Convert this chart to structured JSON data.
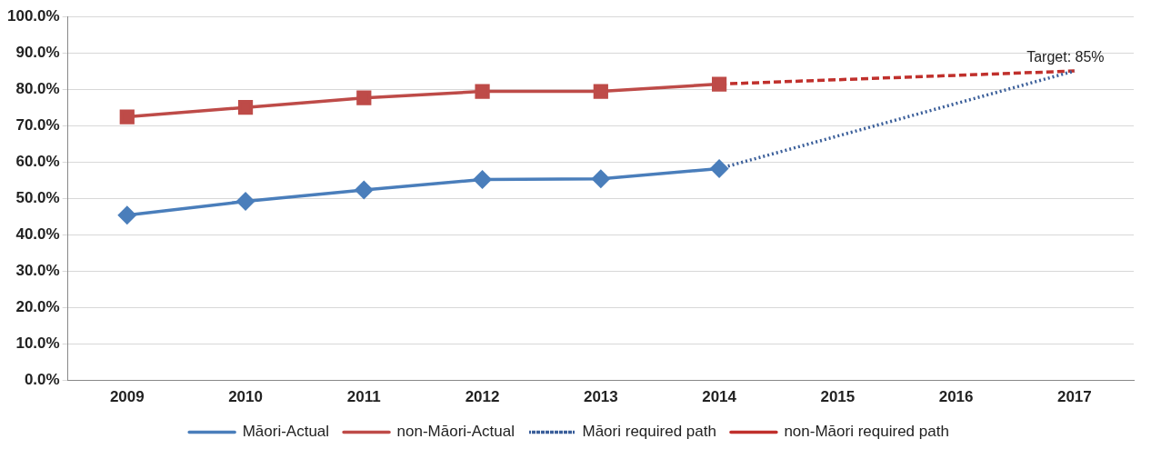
{
  "chart_data": {
    "type": "line",
    "categories": [
      "2009",
      "2010",
      "2011",
      "2012",
      "2013",
      "2014",
      "2015",
      "2016",
      "2017"
    ],
    "series": [
      {
        "name": "Māori-Actual",
        "color": "#4a7ebb",
        "marker": "diamond",
        "line_style": "solid",
        "values": [
          45.4,
          49.2,
          52.3,
          55.2,
          55.4,
          58.2,
          null,
          null,
          null
        ]
      },
      {
        "name": "non-Māori-Actual",
        "color": "#be4b48",
        "marker": "square",
        "line_style": "solid",
        "values": [
          72.4,
          75,
          77.6,
          79.4,
          79.4,
          81.4,
          null,
          null,
          null
        ]
      },
      {
        "name": "Māori required path",
        "color": "#3b5f9a",
        "marker": "none",
        "line_style": "dotted",
        "values": [
          null,
          null,
          null,
          null,
          null,
          58.2,
          null,
          null,
          85
        ]
      },
      {
        "name": "non-Māori required path",
        "color": "#c0302c",
        "marker": "none",
        "line_style": "dashed",
        "values": [
          null,
          null,
          null,
          null,
          null,
          81.4,
          null,
          null,
          85
        ]
      }
    ],
    "ylim": [
      0,
      100
    ],
    "yticks": [
      {
        "value": 0,
        "label": "0.0%"
      },
      {
        "value": 10,
        "label": "10.0%"
      },
      {
        "value": 20,
        "label": "20.0%"
      },
      {
        "value": 30,
        "label": "30.0%"
      },
      {
        "value": 40,
        "label": "40.0%"
      },
      {
        "value": 50,
        "label": "50.0%"
      },
      {
        "value": 60,
        "label": "60.0%"
      },
      {
        "value": 70,
        "label": "70.0%"
      },
      {
        "value": 80,
        "label": "80.0%"
      },
      {
        "value": 90,
        "label": "90.0%"
      },
      {
        "value": 100,
        "label": "100.0%"
      }
    ],
    "grid": "y",
    "legend": "bottom",
    "annotations": [
      {
        "text": "Target: 85%",
        "x": "2017",
        "y": 85
      }
    ]
  }
}
